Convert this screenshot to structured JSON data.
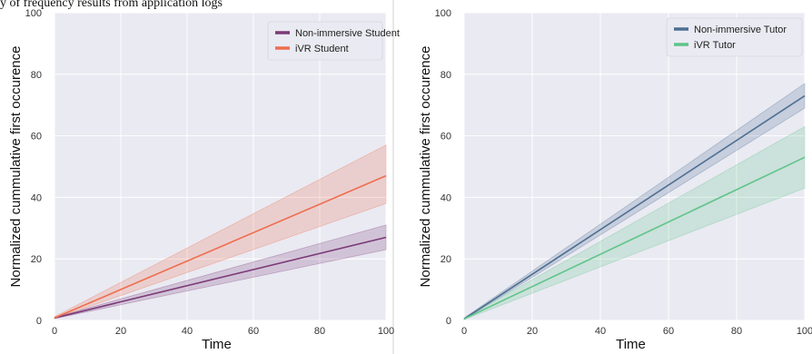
{
  "top_strip_text": "y of frequency results from application logs",
  "chart_data": [
    {
      "type": "line",
      "xlabel": "Time",
      "ylabel": "Normalized cummulative first occurence",
      "xlim": [
        0,
        100
      ],
      "ylim": [
        0,
        100
      ],
      "xticks": [
        0,
        20,
        40,
        60,
        80,
        100
      ],
      "yticks": [
        0,
        20,
        40,
        60,
        80,
        100
      ],
      "grid": true,
      "legend_position": "top-right",
      "series": [
        {
          "name": "Non-immersive Student",
          "color": "#7b3a78",
          "x": [
            0,
            100
          ],
          "y": [
            0.8,
            27
          ],
          "lower": [
            0.6,
            23
          ],
          "upper": [
            1.0,
            31
          ]
        },
        {
          "name": "iVR Student",
          "color": "#ee6e4e",
          "x": [
            0,
            100
          ],
          "y": [
            0.8,
            47
          ],
          "lower": [
            0.6,
            38
          ],
          "upper": [
            1.2,
            57
          ]
        }
      ]
    },
    {
      "type": "line",
      "xlabel": "Time",
      "ylabel": "Normalized cummulative first occurence",
      "xlim": [
        0,
        100
      ],
      "ylim": [
        0,
        100
      ],
      "xticks": [
        0,
        20,
        40,
        60,
        80,
        100
      ],
      "yticks": [
        0,
        20,
        40,
        60,
        80,
        100
      ],
      "grid": true,
      "legend_position": "top-right",
      "series": [
        {
          "name": "Non-immersive Tutor",
          "color": "#4e6f91",
          "x": [
            0,
            100
          ],
          "y": [
            0.5,
            73
          ],
          "lower": [
            0.3,
            69
          ],
          "upper": [
            0.8,
            77
          ]
        },
        {
          "name": "iVR Tutor",
          "color": "#5fc48a",
          "x": [
            0,
            100
          ],
          "y": [
            0.5,
            53
          ],
          "lower": [
            0.3,
            43
          ],
          "upper": [
            0.8,
            63
          ]
        }
      ]
    }
  ]
}
